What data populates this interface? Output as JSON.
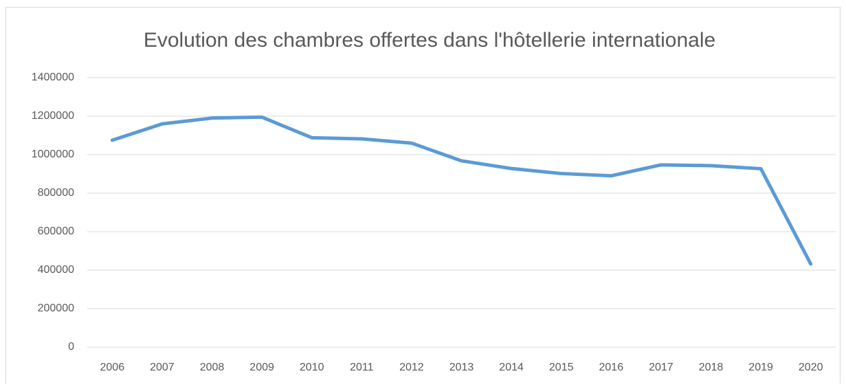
{
  "chart_data": {
    "type": "line",
    "title": "Evolution des chambres offertes dans l'hôtellerie internationale",
    "categories": [
      "2006",
      "2007",
      "2008",
      "2009",
      "2010",
      "2011",
      "2012",
      "2013",
      "2014",
      "2015",
      "2016",
      "2017",
      "2018",
      "2019",
      "2020"
    ],
    "series": [
      {
        "color": "#5b9bd5",
        "values": [
          1075000,
          1160000,
          1190000,
          1195000,
          1088000,
          1082000,
          1060000,
          968000,
          928000,
          902000,
          890000,
          947000,
          943000,
          927000,
          432000
        ]
      }
    ],
    "ylim": [
      0,
      1400000
    ],
    "yticks": [
      0,
      200000,
      400000,
      600000,
      800000,
      1000000,
      1200000,
      1400000
    ],
    "grid": true
  }
}
